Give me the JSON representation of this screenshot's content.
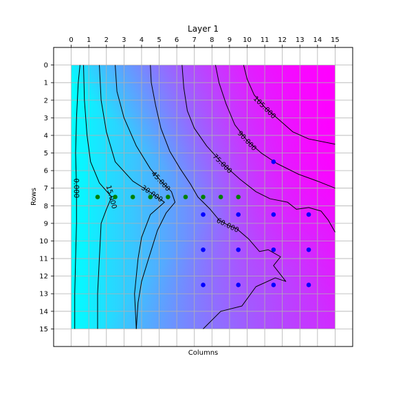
{
  "chart_data": {
    "type": "heatmap",
    "title": "Layer 1",
    "xlabel": "Columns",
    "ylabel": "Rows",
    "xlim": [
      -1,
      16
    ],
    "ylim": [
      16,
      -1
    ],
    "x_ticks": [
      "0",
      "1",
      "2",
      "3",
      "4",
      "5",
      "6",
      "7",
      "8",
      "9",
      "10",
      "11",
      "12",
      "13",
      "14",
      "15"
    ],
    "y_ticks": [
      "0",
      "1",
      "2",
      "3",
      "4",
      "5",
      "6",
      "7",
      "8",
      "9",
      "10",
      "11",
      "12",
      "13",
      "14",
      "15"
    ],
    "x_axis_position": "top",
    "grid": true,
    "colormap": {
      "low": "#00ffff",
      "high": "#ff00ff"
    },
    "field_range": [
      0,
      118
    ],
    "field_extent": {
      "x": [
        0,
        15
      ],
      "y": [
        0,
        15
      ]
    },
    "contours": [
      {
        "level": 0,
        "label": "0.000",
        "points": [
          [
            0.5,
            0
          ],
          [
            0.4,
            1
          ],
          [
            0.3,
            3
          ],
          [
            0.25,
            5
          ],
          [
            0.3,
            7
          ],
          [
            0.3,
            9
          ],
          [
            0.25,
            11
          ],
          [
            0.2,
            13
          ],
          [
            0.2,
            15
          ]
        ]
      },
      {
        "level": 15,
        "label": "15.000",
        "points": [
          [
            0.7,
            0
          ],
          [
            0.75,
            2
          ],
          [
            0.9,
            4
          ],
          [
            1.1,
            5.5
          ],
          [
            1.6,
            6.7
          ],
          [
            2.3,
            7.5
          ],
          [
            2.0,
            8.2
          ],
          [
            1.7,
            9
          ],
          [
            1.6,
            11
          ],
          [
            1.5,
            13
          ],
          [
            1.5,
            15
          ]
        ]
      },
      {
        "level": 30,
        "label": "30.000",
        "points": [
          [
            1.6,
            0
          ],
          [
            1.7,
            2
          ],
          [
            2.0,
            3.8
          ],
          [
            2.5,
            5.5
          ],
          [
            3.5,
            6.6
          ],
          [
            4.6,
            7.3
          ],
          [
            5.3,
            7.8
          ],
          [
            4.5,
            8.5
          ],
          [
            4.0,
            9.8
          ],
          [
            3.8,
            11
          ],
          [
            3.6,
            13
          ],
          [
            3.7,
            15
          ]
        ]
      },
      {
        "level": 45,
        "label": "45.000",
        "points": [
          [
            2.5,
            0
          ],
          [
            2.6,
            1.5
          ],
          [
            3.0,
            3
          ],
          [
            3.7,
            4.6
          ],
          [
            4.5,
            5.9
          ],
          [
            5.1,
            6.6
          ],
          [
            5.7,
            7.2
          ],
          [
            5.9,
            7.8
          ],
          [
            5.4,
            8.4
          ],
          [
            4.9,
            9.4
          ],
          [
            4.4,
            11
          ],
          [
            4.0,
            12.3
          ],
          [
            3.8,
            13.5
          ],
          [
            3.7,
            15
          ]
        ]
      },
      {
        "level": 60,
        "label": "60.000",
        "points": [
          [
            7.5,
            15
          ],
          [
            8.5,
            14
          ],
          [
            9.7,
            13.7
          ],
          [
            10.5,
            12.6
          ],
          [
            11.6,
            12.1
          ],
          [
            12.2,
            12.3
          ],
          [
            11.5,
            11.4
          ],
          [
            11.9,
            10.9
          ],
          [
            11.2,
            10.5
          ],
          [
            10.7,
            10.6
          ],
          [
            10.1,
            9.9
          ],
          [
            9.4,
            9.3
          ],
          [
            8.9,
            9.1
          ],
          [
            8.4,
            8.8
          ],
          [
            7.9,
            8.2
          ],
          [
            7.2,
            7.5
          ],
          [
            6.8,
            6.8
          ],
          [
            6.2,
            5.9
          ],
          [
            5.6,
            4.9
          ],
          [
            5.1,
            3.6
          ],
          [
            4.8,
            2.3
          ],
          [
            4.55,
            1
          ],
          [
            4.5,
            0
          ]
        ]
      },
      {
        "level": 75,
        "label": "75.000",
        "points": [
          [
            6.3,
            0
          ],
          [
            6.4,
            1.3
          ],
          [
            6.6,
            2.6
          ],
          [
            7.0,
            3.6
          ],
          [
            7.7,
            4.6
          ],
          [
            8.6,
            5.6
          ],
          [
            9.6,
            6.5
          ],
          [
            10.5,
            7.2
          ],
          [
            11.3,
            7.6
          ],
          [
            12.3,
            7.8
          ],
          [
            12.8,
            8.2
          ],
          [
            13.5,
            8.1
          ],
          [
            14.2,
            8.3
          ],
          [
            14.6,
            8.8
          ],
          [
            15,
            9.5
          ]
        ]
      },
      {
        "level": 90,
        "label": "90.000",
        "points": [
          [
            8.2,
            0
          ],
          [
            8.4,
            1
          ],
          [
            8.8,
            2.2
          ],
          [
            9.3,
            3.4
          ],
          [
            10.0,
            4.3
          ],
          [
            10.8,
            5.0
          ],
          [
            11.7,
            5.6
          ],
          [
            12.9,
            6.2
          ],
          [
            14.0,
            6.6
          ],
          [
            15,
            7.0
          ]
        ]
      },
      {
        "level": 105,
        "label": "105.000",
        "points": [
          [
            9.8,
            0
          ],
          [
            10.0,
            0.8
          ],
          [
            10.4,
            1.7
          ],
          [
            11.0,
            2.4
          ],
          [
            11.8,
            3.1
          ],
          [
            12.6,
            3.8
          ],
          [
            13.5,
            4.2
          ],
          [
            15,
            4.5
          ]
        ]
      }
    ],
    "series": [
      {
        "color": "#008000",
        "points": [
          [
            1.5,
            7.5
          ],
          [
            2.5,
            7.5
          ],
          [
            3.5,
            7.5
          ],
          [
            4.5,
            7.5
          ],
          [
            5.5,
            7.5
          ],
          [
            6.5,
            7.5
          ],
          [
            7.5,
            7.5
          ],
          [
            8.5,
            7.5
          ],
          [
            9.5,
            7.5
          ]
        ]
      },
      {
        "color": "#0000ff",
        "points": [
          [
            11.5,
            5.5
          ],
          [
            7.5,
            8.5
          ],
          [
            9.5,
            8.5
          ],
          [
            11.5,
            8.5
          ],
          [
            13.5,
            8.5
          ],
          [
            7.5,
            10.5
          ],
          [
            9.5,
            10.5
          ],
          [
            11.5,
            10.5
          ],
          [
            13.5,
            10.5
          ],
          [
            7.5,
            12.5
          ],
          [
            9.5,
            12.5
          ],
          [
            11.5,
            12.5
          ],
          [
            13.5,
            12.5
          ]
        ]
      }
    ]
  }
}
